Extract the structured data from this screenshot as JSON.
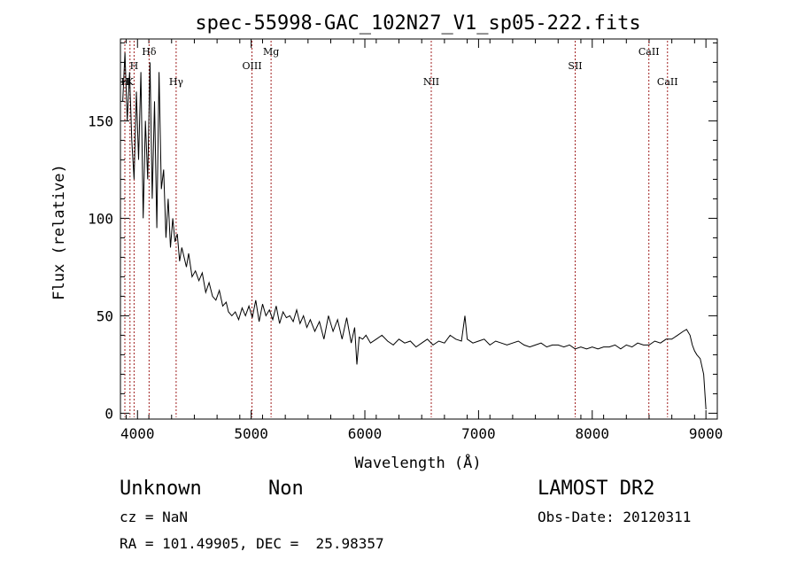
{
  "chart_data": {
    "type": "line",
    "title": "spec-55998-GAC_102N27_V1_sp05-222.fits",
    "xlabel": "Wavelength (Å)",
    "ylabel": "Flux (relative)",
    "xlim": [
      3850,
      9100
    ],
    "ylim": [
      -3,
      192
    ],
    "xticks": [
      4000,
      5000,
      6000,
      7000,
      8000,
      9000
    ],
    "yticks": [
      0,
      50,
      100,
      150
    ],
    "grid": false,
    "series": [
      {
        "name": "flux",
        "x": [
          3870,
          3890,
          3910,
          3930,
          3950,
          3970,
          3990,
          4010,
          4030,
          4050,
          4070,
          4090,
          4110,
          4130,
          4150,
          4170,
          4190,
          4210,
          4230,
          4250,
          4270,
          4290,
          4310,
          4330,
          4350,
          4370,
          4390,
          4410,
          4430,
          4450,
          4480,
          4510,
          4540,
          4570,
          4600,
          4630,
          4660,
          4690,
          4720,
          4750,
          4780,
          4800,
          4830,
          4860,
          4890,
          4920,
          4950,
          4980,
          5010,
          5040,
          5070,
          5100,
          5130,
          5160,
          5190,
          5220,
          5250,
          5280,
          5310,
          5340,
          5370,
          5400,
          5430,
          5460,
          5490,
          5520,
          5560,
          5600,
          5640,
          5680,
          5720,
          5760,
          5800,
          5840,
          5880,
          5910,
          5930,
          5950,
          5980,
          6010,
          6050,
          6100,
          6150,
          6200,
          6250,
          6300,
          6350,
          6400,
          6450,
          6500,
          6550,
          6600,
          6650,
          6700,
          6750,
          6800,
          6850,
          6880,
          6900,
          6950,
          7000,
          7050,
          7100,
          7150,
          7200,
          7250,
          7300,
          7350,
          7400,
          7450,
          7500,
          7550,
          7600,
          7650,
          7700,
          7750,
          7800,
          7850,
          7900,
          7950,
          8000,
          8050,
          8100,
          8150,
          8200,
          8250,
          8300,
          8350,
          8400,
          8450,
          8500,
          8550,
          8600,
          8650,
          8700,
          8750,
          8800,
          8830,
          8860,
          8880,
          8900,
          8920,
          8950,
          8980,
          9000
        ],
        "y": [
          160,
          185,
          150,
          175,
          140,
          120,
          165,
          130,
          175,
          100,
          150,
          120,
          180,
          110,
          160,
          95,
          175,
          115,
          125,
          90,
          110,
          85,
          100,
          88,
          92,
          78,
          85,
          80,
          75,
          82,
          70,
          73,
          68,
          72,
          62,
          67,
          60,
          58,
          63,
          55,
          57,
          52,
          50,
          52,
          48,
          54,
          50,
          55,
          49,
          58,
          47,
          56,
          50,
          53,
          48,
          55,
          46,
          52,
          49,
          50,
          47,
          53,
          46,
          50,
          44,
          48,
          42,
          47,
          38,
          50,
          42,
          48,
          38,
          49,
          36,
          44,
          25,
          39,
          38,
          40,
          36,
          38,
          40,
          37,
          35,
          38,
          36,
          37,
          34,
          36,
          38,
          35,
          37,
          36,
          40,
          38,
          37,
          50,
          38,
          36,
          37,
          38,
          35,
          37,
          36,
          35,
          36,
          37,
          35,
          34,
          35,
          36,
          34,
          35,
          35,
          34,
          35,
          33,
          34,
          33,
          34,
          33,
          34,
          34,
          35,
          33,
          35,
          34,
          36,
          35,
          35,
          37,
          36,
          38,
          38,
          40,
          42,
          43,
          40,
          35,
          32,
          30,
          28,
          20,
          2
        ]
      }
    ],
    "lines": [
      {
        "label": "H",
        "x": 3889,
        "label_row": 3
      },
      {
        "label": "K",
        "x": 3934,
        "label_row": 3
      },
      {
        "label": "H",
        "x": 3970,
        "label_row": 2
      },
      {
        "label": "Hδ",
        "x": 4102,
        "label_row": 1
      },
      {
        "label": "Hγ",
        "x": 4340,
        "label_row": 3
      },
      {
        "label": "OIII",
        "x": 5007,
        "label_row": 2
      },
      {
        "label": "Mg",
        "x": 5175,
        "label_row": 1
      },
      {
        "label": "NII",
        "x": 6584,
        "label_row": 3
      },
      {
        "label": "SII",
        "x": 7850,
        "label_row": 2
      },
      {
        "label": "CaII",
        "x": 8498,
        "label_row": 1
      },
      {
        "label": "CaII",
        "x": 8662,
        "label_row": 3
      }
    ]
  },
  "footer": {
    "class_label": "Unknown",
    "subclass_label": "Non",
    "survey": "LAMOST DR2",
    "cz": "cz = NaN",
    "obs_date": "Obs-Date: 20120311",
    "coords": "RA = 101.49905, DEC =  25.98357"
  },
  "colors": {
    "line": "#000000",
    "marker": "#a02020",
    "axis": "#000000"
  }
}
